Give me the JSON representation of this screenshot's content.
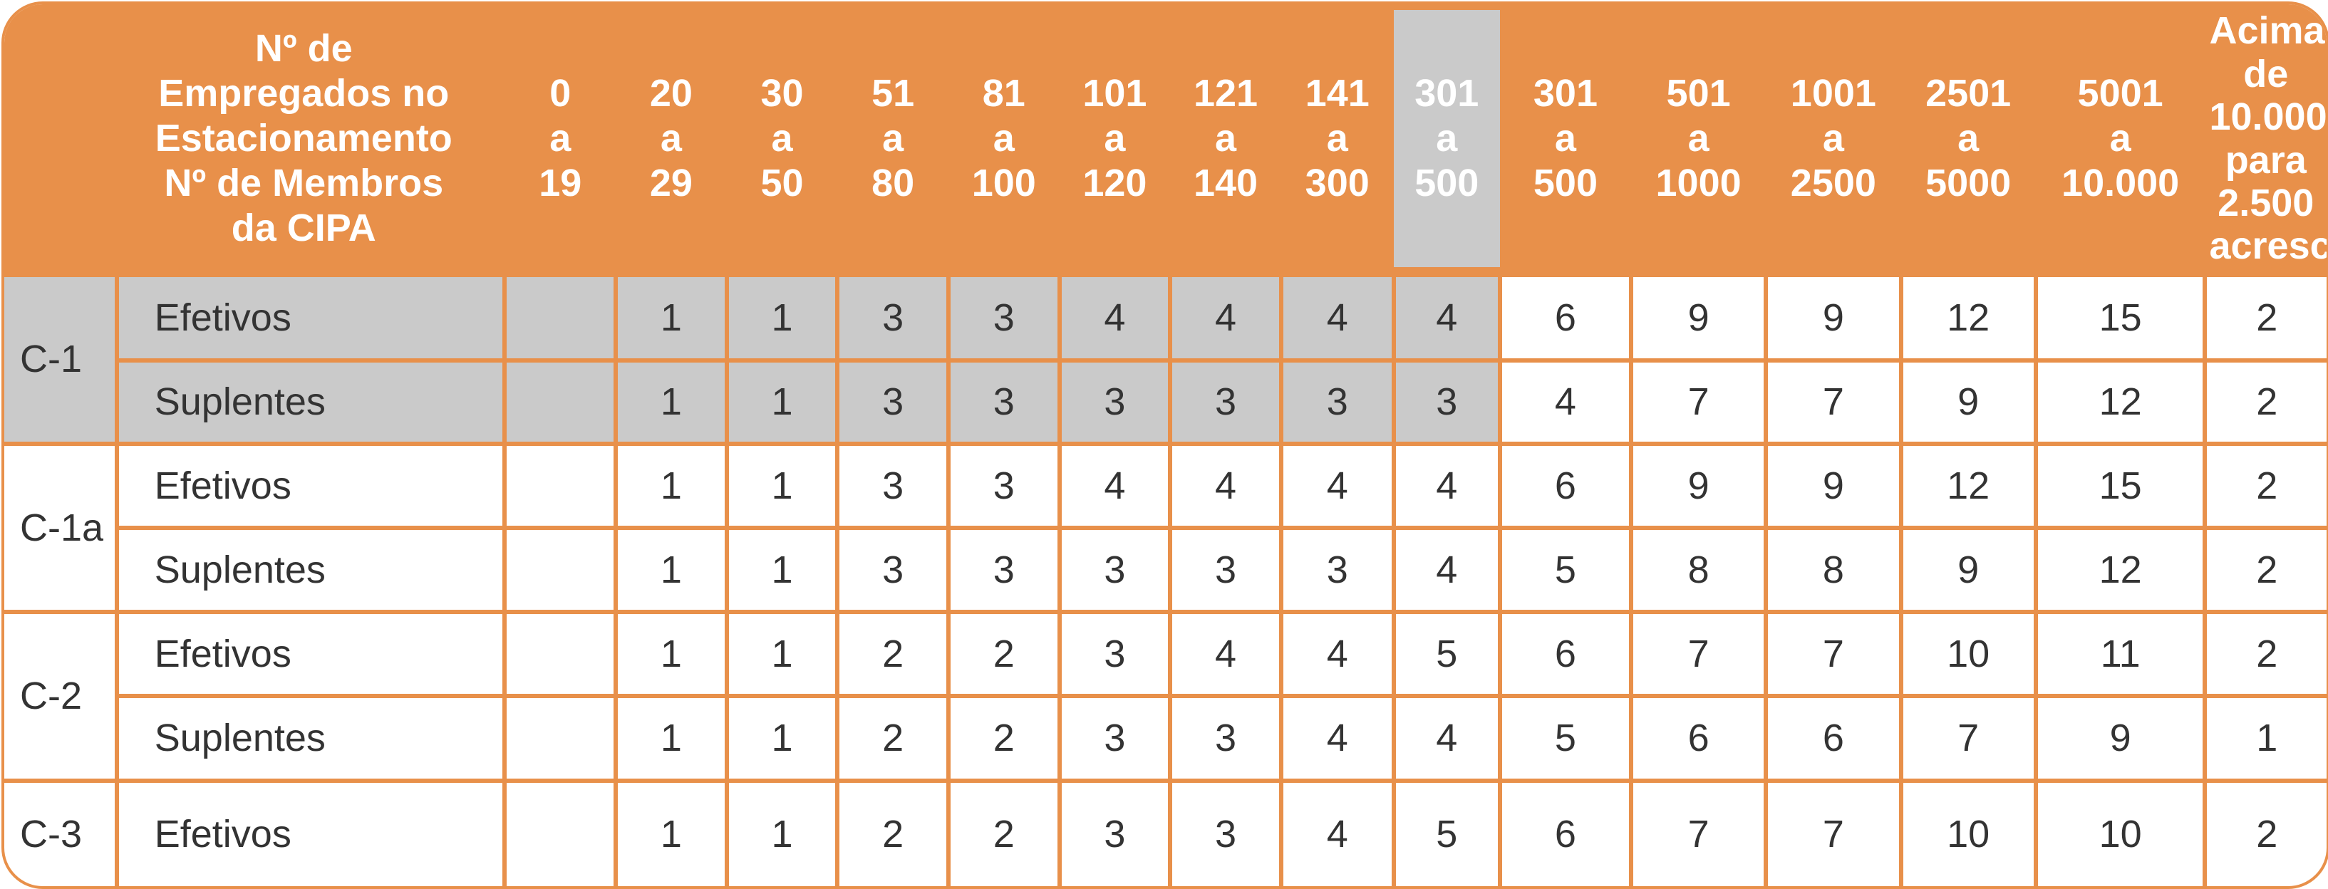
{
  "header": {
    "title_lines": [
      "Nº de",
      "Empregados no",
      "Estacionamento",
      "Nº de Membros",
      "da CIPA"
    ],
    "ranges": [
      [
        "0",
        "a",
        "19"
      ],
      [
        "20",
        "a",
        "29"
      ],
      [
        "30",
        "a",
        "50"
      ],
      [
        "51",
        "a",
        "80"
      ],
      [
        "81",
        "a",
        "100"
      ],
      [
        "101",
        "a",
        "120"
      ],
      [
        "121",
        "a",
        "140"
      ],
      [
        "141",
        "a",
        "300"
      ],
      [
        "301",
        "a",
        "500"
      ],
      [
        "301",
        "a",
        "500"
      ],
      [
        "501",
        "a",
        "1000"
      ],
      [
        "1001",
        "a",
        "2500"
      ],
      [
        "2501",
        "a",
        "5000"
      ],
      [
        "5001",
        "a",
        "10.000"
      ],
      [
        "Acima de",
        "10.000 para",
        "2.500",
        "acrescentar"
      ]
    ]
  },
  "groups": [
    {
      "label": "C-1",
      "rows": [
        {
          "kind": "Efetivos",
          "values": [
            "",
            "1",
            "1",
            "3",
            "3",
            "4",
            "4",
            "4",
            "4",
            "6",
            "9",
            "9",
            "12",
            "15",
            "2"
          ]
        },
        {
          "kind": "Suplentes",
          "values": [
            "",
            "1",
            "1",
            "3",
            "3",
            "3",
            "3",
            "3",
            "3",
            "4",
            "7",
            "7",
            "9",
            "12",
            "2"
          ]
        }
      ]
    },
    {
      "label": "C-1a",
      "rows": [
        {
          "kind": "Efetivos",
          "values": [
            "",
            "1",
            "1",
            "3",
            "3",
            "4",
            "4",
            "4",
            "4",
            "6",
            "9",
            "9",
            "12",
            "15",
            "2"
          ]
        },
        {
          "kind": "Suplentes",
          "values": [
            "",
            "1",
            "1",
            "3",
            "3",
            "3",
            "3",
            "3",
            "4",
            "5",
            "8",
            "8",
            "9",
            "12",
            "2"
          ]
        }
      ]
    },
    {
      "label": "C-2",
      "rows": [
        {
          "kind": "Efetivos",
          "values": [
            "",
            "1",
            "1",
            "2",
            "2",
            "3",
            "4",
            "4",
            "5",
            "6",
            "7",
            "7",
            "10",
            "11",
            "2"
          ]
        },
        {
          "kind": "Suplentes",
          "values": [
            "",
            "1",
            "1",
            "2",
            "2",
            "3",
            "3",
            "4",
            "4",
            "5",
            "6",
            "6",
            "7",
            "9",
            "1"
          ]
        }
      ]
    },
    {
      "label": "C-3",
      "rows": [
        {
          "kind": "Efetivos",
          "values": [
            "",
            "1",
            "1",
            "2",
            "2",
            "3",
            "3",
            "4",
            "5",
            "6",
            "7",
            "7",
            "10",
            "10",
            "2"
          ]
        }
      ]
    }
  ],
  "colors": {
    "accent": "#e8904a",
    "highlight": "#cacaca",
    "text": "#333333"
  }
}
